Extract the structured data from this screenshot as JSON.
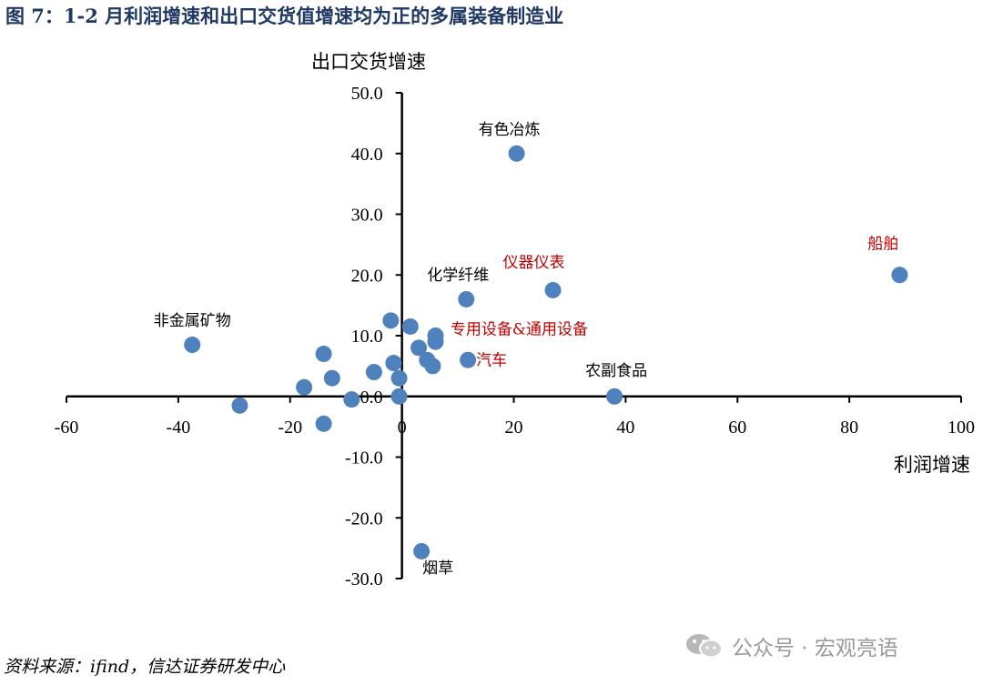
{
  "figure": {
    "title": "图 7：1-2 月利润增速和出口交货值增速均为正的多属装备制造业",
    "source": "资料来源：ifind，信达证券研发中心",
    "watermark": "公众号 · 宏观亮语"
  },
  "chart_data": {
    "type": "scatter",
    "xlabel": "利润增速",
    "ylabel": "出口交货增速",
    "xlim": [
      -60,
      100
    ],
    "ylim": [
      -30,
      50
    ],
    "x_ticks": [
      "-60",
      "-40",
      "-20",
      "0",
      "20",
      "40",
      "60",
      "80",
      "100"
    ],
    "x_tick_values": [
      -60,
      -40,
      -20,
      0,
      20,
      40,
      60,
      80,
      100
    ],
    "y_ticks": [
      "50.0",
      "40.0",
      "30.0",
      "20.0",
      "10.0",
      "0.0",
      "-10.0",
      "-20.0",
      "-30.0"
    ],
    "y_tick_values": [
      50,
      40,
      30,
      20,
      10,
      0,
      -10,
      -20,
      -30
    ],
    "marker_color": "#4f81bd",
    "highlight_label_color": "#c00000",
    "normal_label_color": "#000000",
    "points": [
      {
        "x": 20.5,
        "y": 40.0,
        "label": "有色冶炼",
        "highlight": false
      },
      {
        "x": 89.0,
        "y": 20.0,
        "label": "船舶",
        "highlight": true
      },
      {
        "x": 27.0,
        "y": 17.5,
        "label": "仪器仪表",
        "highlight": true
      },
      {
        "x": 11.5,
        "y": 16.0,
        "label": "化学纤维",
        "highlight": false
      },
      {
        "x": -37.5,
        "y": 8.5,
        "label": "非金属矿物",
        "highlight": false
      },
      {
        "x": 6.0,
        "y": 9.0,
        "label": "专用设备&通用设备",
        "highlight": true
      },
      {
        "x": 6.0,
        "y": 10.0,
        "label": "",
        "highlight": false
      },
      {
        "x": 11.8,
        "y": 6.0,
        "label": "汽车",
        "highlight": true
      },
      {
        "x": 38.0,
        "y": 0.0,
        "label": "农副食品",
        "highlight": false
      },
      {
        "x": 3.5,
        "y": -25.5,
        "label": "烟草",
        "highlight": false
      },
      {
        "x": -2.0,
        "y": 12.5,
        "label": "",
        "highlight": false
      },
      {
        "x": 1.5,
        "y": 11.5,
        "label": "",
        "highlight": false
      },
      {
        "x": 3.0,
        "y": 8.0,
        "label": "",
        "highlight": false
      },
      {
        "x": 4.5,
        "y": 6.0,
        "label": "",
        "highlight": false
      },
      {
        "x": 5.5,
        "y": 5.0,
        "label": "",
        "highlight": false
      },
      {
        "x": -1.5,
        "y": 5.5,
        "label": "",
        "highlight": false
      },
      {
        "x": -0.5,
        "y": 3.0,
        "label": "",
        "highlight": false
      },
      {
        "x": -5.0,
        "y": 4.0,
        "label": "",
        "highlight": false
      },
      {
        "x": -12.5,
        "y": 3.0,
        "label": "",
        "highlight": false
      },
      {
        "x": -14.0,
        "y": 7.0,
        "label": "",
        "highlight": false
      },
      {
        "x": -17.5,
        "y": 1.5,
        "label": "",
        "highlight": false
      },
      {
        "x": -9.0,
        "y": -0.5,
        "label": "",
        "highlight": false
      },
      {
        "x": -0.5,
        "y": 0.0,
        "label": "",
        "highlight": false
      },
      {
        "x": -29.0,
        "y": -1.5,
        "label": "",
        "highlight": false
      },
      {
        "x": -14.0,
        "y": -4.5,
        "label": "",
        "highlight": false
      }
    ]
  }
}
